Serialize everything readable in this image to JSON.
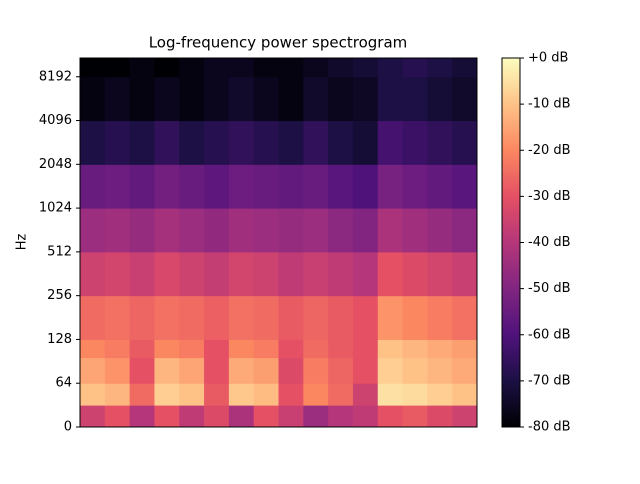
{
  "chart_data": {
    "type": "heatmap",
    "title": "Log-frequency power spectrogram",
    "ylabel": "Hz",
    "yscale": "symlog",
    "linthresh": 64,
    "colormap": "magma",
    "ylim": [
      0,
      11025
    ],
    "yticks": [
      0,
      64,
      128,
      256,
      512,
      1024,
      2048,
      4096,
      8192
    ],
    "y_edges": [
      0,
      32,
      64,
      96,
      128,
      256,
      512,
      1024,
      2048,
      4096,
      8192,
      11025
    ],
    "values": [
      [
        -35,
        -30,
        -40,
        -30,
        -38,
        -32,
        -42,
        -30,
        -36,
        -45,
        -40,
        -38,
        -30,
        -28,
        -32,
        -35
      ],
      [
        -10,
        -12,
        -25,
        -8,
        -10,
        -28,
        -9,
        -11,
        -30,
        -20,
        -25,
        -35,
        -5,
        -6,
        -8,
        -10
      ],
      [
        -15,
        -18,
        -30,
        -12,
        -15,
        -30,
        -14,
        -16,
        -32,
        -22,
        -26,
        -30,
        -8,
        -10,
        -12,
        -14
      ],
      [
        -20,
        -22,
        -28,
        -20,
        -22,
        -30,
        -20,
        -22,
        -30,
        -25,
        -28,
        -30,
        -10,
        -12,
        -14,
        -16
      ],
      [
        -25,
        -24,
        -26,
        -24,
        -25,
        -27,
        -24,
        -25,
        -28,
        -26,
        -28,
        -30,
        -18,
        -20,
        -22,
        -24
      ],
      [
        -35,
        -34,
        -36,
        -33,
        -35,
        -37,
        -34,
        -35,
        -38,
        -36,
        -38,
        -40,
        -30,
        -32,
        -34,
        -36
      ],
      [
        -45,
        -44,
        -46,
        -43,
        -45,
        -47,
        -44,
        -45,
        -46,
        -45,
        -48,
        -50,
        -42,
        -44,
        -46,
        -48
      ],
      [
        -55,
        -54,
        -56,
        -53,
        -55,
        -57,
        -54,
        -55,
        -56,
        -55,
        -58,
        -60,
        -52,
        -54,
        -56,
        -58
      ],
      [
        -70,
        -68,
        -70,
        -66,
        -70,
        -68,
        -66,
        -68,
        -70,
        -66,
        -70,
        -72,
        -62,
        -64,
        -66,
        -68
      ],
      [
        -78,
        -76,
        -78,
        -76,
        -78,
        -76,
        -74,
        -76,
        -78,
        -74,
        -76,
        -75,
        -70,
        -70,
        -72,
        -74
      ],
      [
        -80,
        -80,
        -78,
        -80,
        -78,
        -76,
        -76,
        -78,
        -78,
        -76,
        -74,
        -72,
        -70,
        -68,
        -70,
        -72
      ]
    ],
    "clim": [
      -80,
      0
    ],
    "cticks": [
      {
        "value": 0,
        "label": "+0 dB"
      },
      {
        "value": -10,
        "label": "-10 dB"
      },
      {
        "value": -20,
        "label": "-20 dB"
      },
      {
        "value": -30,
        "label": "-30 dB"
      },
      {
        "value": -40,
        "label": "-40 dB"
      },
      {
        "value": -50,
        "label": "-50 dB"
      },
      {
        "value": -60,
        "label": "-60 dB"
      },
      {
        "value": -70,
        "label": "-70 dB"
      },
      {
        "value": -80,
        "label": "-80 dB"
      }
    ]
  }
}
